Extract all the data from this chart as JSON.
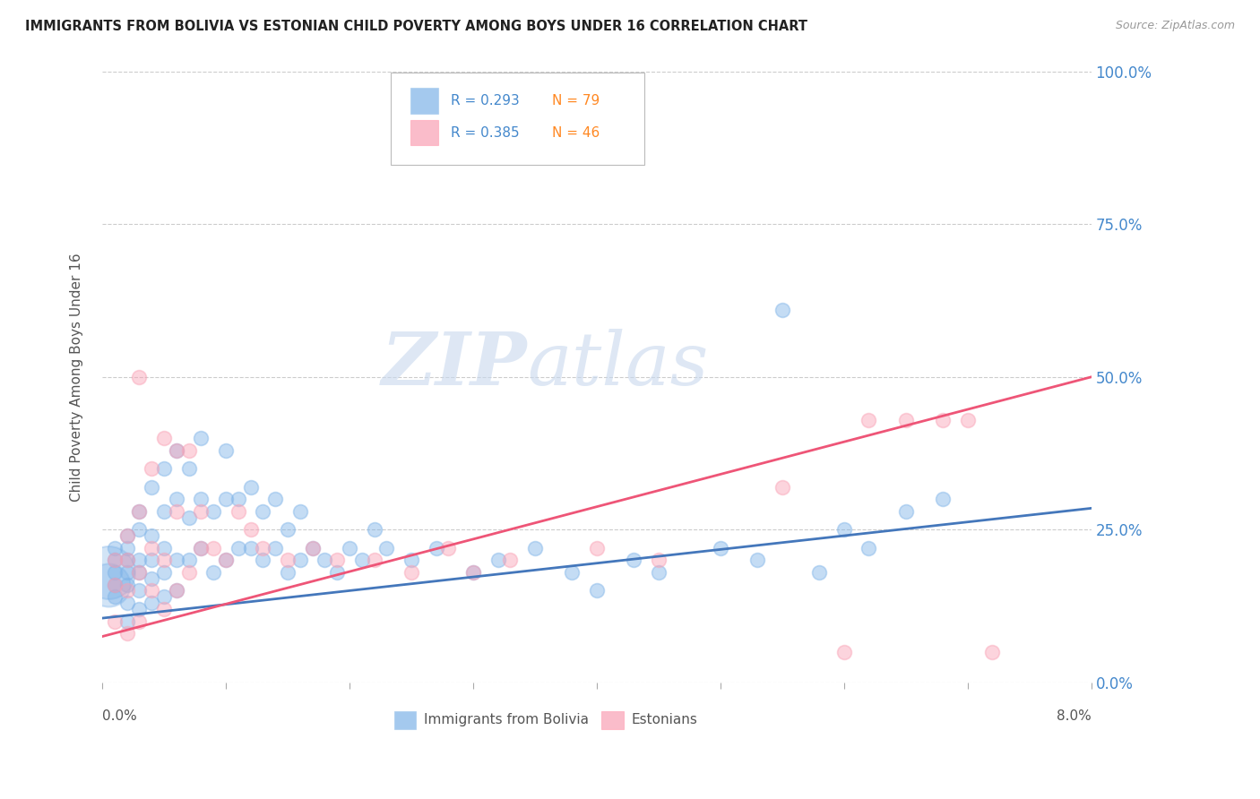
{
  "title": "IMMIGRANTS FROM BOLIVIA VS ESTONIAN CHILD POVERTY AMONG BOYS UNDER 16 CORRELATION CHART",
  "source": "Source: ZipAtlas.com",
  "ylabel": "Child Poverty Among Boys Under 16",
  "ytick_labels": [
    "0.0%",
    "25.0%",
    "50.0%",
    "75.0%",
    "100.0%"
  ],
  "ytick_values": [
    0.0,
    0.25,
    0.5,
    0.75,
    1.0
  ],
  "xlim": [
    0.0,
    0.08
  ],
  "ylim": [
    0.0,
    1.0
  ],
  "legend_r1": "R = 0.293",
  "legend_n1": "N = 79",
  "legend_r2": "R = 0.385",
  "legend_n2": "N = 46",
  "series1_label": "Immigrants from Bolivia",
  "series2_label": "Estonians",
  "series1_color": "#7EB3E8",
  "series2_color": "#F9A0B4",
  "trendline1_color": "#4477BB",
  "trendline2_color": "#EE5577",
  "watermark_color": "#C8D8EE",
  "scatter1_x": [
    0.001,
    0.001,
    0.001,
    0.001,
    0.001,
    0.002,
    0.002,
    0.002,
    0.002,
    0.002,
    0.002,
    0.002,
    0.003,
    0.003,
    0.003,
    0.003,
    0.003,
    0.003,
    0.004,
    0.004,
    0.004,
    0.004,
    0.004,
    0.005,
    0.005,
    0.005,
    0.005,
    0.005,
    0.006,
    0.006,
    0.006,
    0.006,
    0.007,
    0.007,
    0.007,
    0.008,
    0.008,
    0.008,
    0.009,
    0.009,
    0.01,
    0.01,
    0.01,
    0.011,
    0.011,
    0.012,
    0.012,
    0.013,
    0.013,
    0.014,
    0.014,
    0.015,
    0.015,
    0.016,
    0.016,
    0.017,
    0.018,
    0.019,
    0.02,
    0.021,
    0.022,
    0.023,
    0.025,
    0.027,
    0.03,
    0.032,
    0.035,
    0.038,
    0.04,
    0.043,
    0.045,
    0.05,
    0.053,
    0.055,
    0.058,
    0.06,
    0.062,
    0.065,
    0.068
  ],
  "scatter1_y": [
    0.14,
    0.16,
    0.18,
    0.2,
    0.22,
    0.1,
    0.13,
    0.16,
    0.18,
    0.2,
    0.22,
    0.24,
    0.12,
    0.15,
    0.18,
    0.2,
    0.25,
    0.28,
    0.13,
    0.17,
    0.2,
    0.24,
    0.32,
    0.14,
    0.18,
    0.22,
    0.28,
    0.35,
    0.15,
    0.2,
    0.3,
    0.38,
    0.2,
    0.27,
    0.35,
    0.22,
    0.3,
    0.4,
    0.18,
    0.28,
    0.2,
    0.3,
    0.38,
    0.22,
    0.3,
    0.22,
    0.32,
    0.2,
    0.28,
    0.22,
    0.3,
    0.18,
    0.25,
    0.2,
    0.28,
    0.22,
    0.2,
    0.18,
    0.22,
    0.2,
    0.25,
    0.22,
    0.2,
    0.22,
    0.18,
    0.2,
    0.22,
    0.18,
    0.15,
    0.2,
    0.18,
    0.22,
    0.2,
    0.61,
    0.18,
    0.25,
    0.22,
    0.28,
    0.3
  ],
  "scatter1_sizes": [
    400,
    100,
    100,
    100,
    100,
    100,
    100,
    100,
    100,
    100,
    100,
    100,
    100,
    100,
    100,
    100,
    100,
    100,
    100,
    100,
    100,
    100,
    100,
    100,
    100,
    100,
    100,
    100,
    100,
    100,
    100,
    100,
    100,
    100,
    100,
    100,
    100,
    100,
    100,
    100,
    100,
    100,
    100,
    100,
    100,
    100,
    100,
    100,
    100,
    100,
    100,
    100,
    100,
    100,
    100,
    100,
    100,
    100,
    100,
    100,
    100,
    100,
    100,
    100,
    100,
    100,
    100,
    100,
    100,
    100,
    100,
    100,
    100,
    100,
    100,
    100,
    100,
    100,
    100
  ],
  "scatter2_x": [
    0.001,
    0.001,
    0.001,
    0.002,
    0.002,
    0.002,
    0.002,
    0.003,
    0.003,
    0.003,
    0.003,
    0.004,
    0.004,
    0.004,
    0.005,
    0.005,
    0.005,
    0.006,
    0.006,
    0.006,
    0.007,
    0.007,
    0.008,
    0.008,
    0.009,
    0.01,
    0.011,
    0.012,
    0.013,
    0.015,
    0.017,
    0.019,
    0.022,
    0.025,
    0.028,
    0.03,
    0.033,
    0.04,
    0.045,
    0.055,
    0.06,
    0.062,
    0.065,
    0.068,
    0.07,
    0.072
  ],
  "scatter2_y": [
    0.1,
    0.16,
    0.2,
    0.08,
    0.15,
    0.2,
    0.24,
    0.1,
    0.18,
    0.28,
    0.5,
    0.15,
    0.22,
    0.35,
    0.12,
    0.2,
    0.4,
    0.15,
    0.28,
    0.38,
    0.18,
    0.38,
    0.22,
    0.28,
    0.22,
    0.2,
    0.28,
    0.25,
    0.22,
    0.2,
    0.22,
    0.2,
    0.2,
    0.18,
    0.22,
    0.18,
    0.2,
    0.22,
    0.2,
    0.32,
    0.05,
    0.43,
    0.43,
    0.43,
    0.43,
    0.05
  ],
  "scatter2_sizes": [
    100,
    100,
    100,
    100,
    100,
    100,
    100,
    100,
    100,
    100,
    100,
    100,
    100,
    100,
    100,
    100,
    100,
    100,
    100,
    100,
    100,
    100,
    100,
    100,
    100,
    100,
    100,
    100,
    100,
    100,
    100,
    100,
    100,
    100,
    100,
    100,
    100,
    100,
    100,
    100,
    100,
    100,
    100,
    100,
    100,
    100
  ],
  "trendline1_x": [
    0.0,
    0.08
  ],
  "trendline1_y": [
    0.105,
    0.285
  ],
  "trendline2_x": [
    0.0,
    0.08
  ],
  "trendline2_y": [
    0.075,
    0.5
  ]
}
